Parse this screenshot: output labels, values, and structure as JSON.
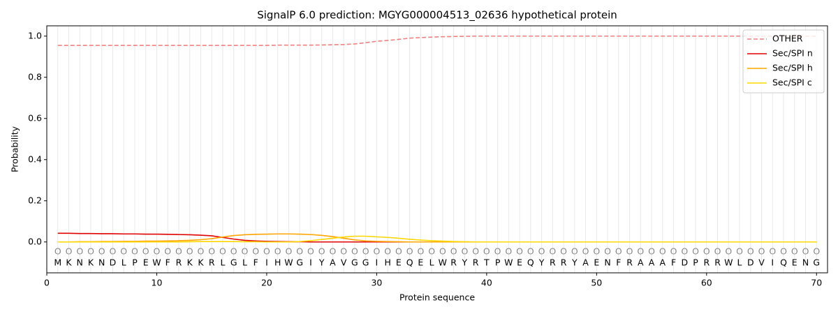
{
  "chart_data": {
    "type": "line",
    "title": "SignalP 6.0 prediction: MGYG000004513_02636 hypothetical protein",
    "x_label": "Protein sequence",
    "y_label": "Probability",
    "x": [
      1,
      2,
      3,
      4,
      5,
      6,
      7,
      8,
      9,
      10,
      11,
      12,
      13,
      14,
      15,
      16,
      17,
      18,
      19,
      20,
      21,
      22,
      23,
      24,
      25,
      26,
      27,
      28,
      29,
      30,
      31,
      32,
      33,
      34,
      35,
      36,
      37,
      38,
      39,
      40,
      41,
      42,
      43,
      44,
      45,
      46,
      47,
      48,
      49,
      50,
      51,
      52,
      53,
      54,
      55,
      56,
      57,
      58,
      59,
      60,
      61,
      62,
      63,
      64,
      65,
      66,
      67,
      68,
      69,
      70
    ],
    "sequence": [
      "M",
      "K",
      "N",
      "K",
      "N",
      "D",
      "L",
      "P",
      "E",
      "W",
      "F",
      "R",
      "K",
      "K",
      "R",
      "L",
      "G",
      "L",
      "F",
      "I",
      "H",
      "W",
      "G",
      "I",
      "Y",
      "A",
      "V",
      "G",
      "G",
      "I",
      "H",
      "E",
      "Q",
      "E",
      "L",
      "W",
      "R",
      "Y",
      "R",
      "T",
      "P",
      "W",
      "E",
      "Q",
      "Y",
      "R",
      "R",
      "Y",
      "A",
      "E",
      "N",
      "F",
      "R",
      "A",
      "A",
      "A",
      "F",
      "D",
      "P",
      "R",
      "R",
      "W",
      "L",
      "D",
      "V",
      "I",
      "Q",
      "E",
      "N",
      "G"
    ],
    "predicted_labels": [
      "O",
      "O",
      "O",
      "O",
      "O",
      "O",
      "O",
      "O",
      "O",
      "O",
      "O",
      "O",
      "O",
      "O",
      "O",
      "O",
      "O",
      "O",
      "O",
      "O",
      "O",
      "O",
      "O",
      "O",
      "O",
      "O",
      "O",
      "O",
      "O",
      "O",
      "O",
      "O",
      "O",
      "O",
      "O",
      "O",
      "O",
      "O",
      "O",
      "O",
      "O",
      "O",
      "O",
      "O",
      "O",
      "O",
      "O",
      "O",
      "O",
      "O",
      "O",
      "O",
      "O",
      "O",
      "O",
      "O",
      "O",
      "O",
      "O",
      "O",
      "O",
      "O",
      "O",
      "O",
      "O",
      "O",
      "O",
      "O",
      "O",
      "O"
    ],
    "series": [
      {
        "name": "OTHER",
        "color": "#f08080",
        "dashed": true,
        "values": [
          0.955,
          0.955,
          0.955,
          0.955,
          0.955,
          0.955,
          0.955,
          0.955,
          0.955,
          0.955,
          0.955,
          0.955,
          0.955,
          0.955,
          0.955,
          0.955,
          0.955,
          0.955,
          0.955,
          0.955,
          0.956,
          0.956,
          0.956,
          0.956,
          0.957,
          0.958,
          0.959,
          0.962,
          0.968,
          0.975,
          0.979,
          0.984,
          0.99,
          0.993,
          0.995,
          0.997,
          0.998,
          0.999,
          1,
          1,
          1,
          1,
          1,
          1,
          1,
          1,
          1,
          1,
          1,
          1,
          1,
          1,
          1,
          1,
          1,
          1,
          1,
          1,
          1,
          1,
          1,
          1,
          1,
          1,
          1,
          1,
          1,
          1,
          1,
          1
        ]
      },
      {
        "name": "Sec/SPI n",
        "color": "#e00000",
        "dashed": false,
        "values": [
          0.042,
          0.042,
          0.041,
          0.041,
          0.04,
          0.04,
          0.039,
          0.039,
          0.038,
          0.038,
          0.037,
          0.036,
          0.035,
          0.033,
          0.03,
          0.022,
          0.014,
          0.008,
          0.005,
          0.003,
          0.002,
          0.001,
          0.001,
          0,
          0,
          0,
          0,
          0,
          0,
          0,
          0,
          0,
          0,
          0,
          0,
          0,
          0,
          0,
          0,
          0,
          0,
          0,
          0,
          0,
          0,
          0,
          0,
          0,
          0,
          0,
          0,
          0,
          0,
          0,
          0,
          0,
          0,
          0,
          0,
          0,
          0,
          0,
          0,
          0,
          0,
          0,
          0,
          0,
          0,
          0
        ]
      },
      {
        "name": "Sec/SPI h",
        "color": "#ffa500",
        "dashed": false,
        "values": [
          0,
          0,
          0.001,
          0.001,
          0.002,
          0.002,
          0.003,
          0.003,
          0.004,
          0.004,
          0.005,
          0.006,
          0.008,
          0.011,
          0.016,
          0.024,
          0.031,
          0.035,
          0.037,
          0.038,
          0.039,
          0.039,
          0.038,
          0.036,
          0.032,
          0.026,
          0.018,
          0.01,
          0.005,
          0.003,
          0.002,
          0.001,
          0,
          0,
          0,
          0,
          0,
          0,
          0,
          0,
          0,
          0,
          0,
          0,
          0,
          0,
          0,
          0,
          0,
          0,
          0,
          0,
          0,
          0,
          0,
          0,
          0,
          0,
          0,
          0,
          0,
          0,
          0,
          0,
          0,
          0,
          0,
          0,
          0,
          0
        ]
      },
      {
        "name": "Sec/SPI c",
        "color": "#ffd700",
        "dashed": false,
        "values": [
          0,
          0,
          0,
          0,
          0,
          0,
          0,
          0,
          0,
          0,
          0,
          0,
          0.001,
          0.002,
          0.002,
          0.002,
          0.002,
          0.001,
          0.001,
          0,
          0,
          0,
          0.002,
          0.006,
          0.012,
          0.018,
          0.024,
          0.028,
          0.028,
          0.025,
          0.022,
          0.018,
          0.013,
          0.009,
          0.006,
          0.004,
          0.002,
          0.001,
          0,
          0,
          0,
          0,
          0,
          0,
          0,
          0,
          0,
          0,
          0,
          0,
          0,
          0,
          0,
          0,
          0,
          0,
          0,
          0,
          0,
          0,
          0,
          0,
          0,
          0,
          0,
          0,
          0,
          0,
          0,
          0
        ]
      }
    ],
    "xlim": [
      0,
      71
    ],
    "ylim": [
      -0.15,
      1.05
    ],
    "xticks": [
      0,
      10,
      20,
      30,
      40,
      50,
      60,
      70
    ],
    "yticks": [
      {
        "value": 0,
        "label": "0.0"
      },
      {
        "value": 0.2,
        "label": "0.2"
      },
      {
        "value": 0.4,
        "label": "0.4"
      },
      {
        "value": 0.6,
        "label": "0.6"
      },
      {
        "value": 0.8,
        "label": "0.8"
      },
      {
        "value": 1,
        "label": "1.0"
      }
    ],
    "grid": true,
    "legend": "upper right"
  }
}
